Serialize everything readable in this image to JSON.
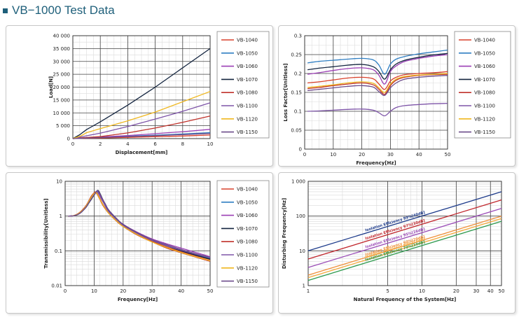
{
  "page": {
    "title": "VB−1000 Test Data"
  },
  "colors": {
    "VB-1040": "#d9402b",
    "VB-1050": "#2f7ec2",
    "VB-1060": "#9b3fb5",
    "VB-1070": "#13243f",
    "VB-1080": "#c0322b",
    "VB-1100": "#7e55a8",
    "VB-1120": "#efb71f",
    "VB-1150": "#6c4b8a"
  },
  "chart_data": [
    {
      "type": "line",
      "xlabel": "Displacement[mm]",
      "ylabel": "Load[N]",
      "xlim": [
        0,
        10
      ],
      "ylim": [
        0,
        40000
      ],
      "xticks": [
        "0",
        "2",
        "4",
        "6",
        "8",
        "10"
      ],
      "yticks": [
        "0",
        "5 000",
        "10 000",
        "15 000",
        "20 000",
        "25 000",
        "30 000",
        "35 000",
        "40 000"
      ],
      "grid": true,
      "legend": "right",
      "series": [
        {
          "name": "VB-1040",
          "x": [
            0,
            0.8,
            2,
            4,
            6,
            8,
            10
          ],
          "y": [
            0,
            100,
            250,
            500,
            750,
            1000,
            1400
          ]
        },
        {
          "name": "VB-1050",
          "x": [
            0,
            0.8,
            2,
            4,
            6,
            8,
            10
          ],
          "y": [
            0,
            200,
            450,
            900,
            1300,
            1800,
            2300
          ]
        },
        {
          "name": "VB-1060",
          "x": [
            0,
            0.8,
            2,
            4,
            6,
            8,
            10
          ],
          "y": [
            0,
            250,
            600,
            1200,
            1900,
            2700,
            3600
          ]
        },
        {
          "name": "VB-1070",
          "x": [
            0,
            0.5,
            1,
            2,
            4,
            6,
            8,
            10
          ],
          "y": [
            0,
            1500,
            3500,
            6500,
            13000,
            20000,
            27500,
            35000
          ]
        },
        {
          "name": "VB-1080",
          "x": [
            0,
            0.8,
            2,
            4,
            6,
            8,
            10
          ],
          "y": [
            0,
            350,
            800,
            2200,
            4100,
            6300,
            8800
          ]
        },
        {
          "name": "VB-1100",
          "x": [
            0,
            0.8,
            2,
            4,
            6,
            8,
            10
          ],
          "y": [
            0,
            900,
            2100,
            4700,
            7600,
            10600,
            13900
          ]
        },
        {
          "name": "VB-1120",
          "x": [
            0,
            0.6,
            1,
            2,
            4,
            6,
            8,
            10
          ],
          "y": [
            0,
            1100,
            2300,
            3900,
            6900,
            10300,
            14300,
            18300
          ]
        },
        {
          "name": "VB-1150",
          "x": [
            0,
            0.8,
            2,
            4,
            6,
            8,
            10
          ],
          "y": [
            0,
            150,
            400,
            800,
            1150,
            1550,
            2000
          ]
        }
      ]
    },
    {
      "type": "line",
      "xlabel": "Frequency[Hz]",
      "ylabel": "Loss Factor[Unitless]",
      "xlim": [
        0,
        50
      ],
      "ylim": [
        0,
        0.3
      ],
      "xticks": [
        "0",
        "10",
        "20",
        "30",
        "40",
        "50"
      ],
      "yticks": [
        "0",
        "0.05",
        "0.1",
        "0.15",
        "0.2",
        "0.25",
        "0.3"
      ],
      "grid": true,
      "legend": "right",
      "series": [
        {
          "name": "VB-1040",
          "x": [
            1,
            5,
            10,
            15,
            20,
            24,
            26,
            28,
            30,
            32,
            35,
            40,
            45,
            50
          ],
          "y": [
            0.175,
            0.178,
            0.183,
            0.188,
            0.19,
            0.186,
            0.172,
            0.158,
            0.18,
            0.19,
            0.197,
            0.2,
            0.202,
            0.205
          ]
        },
        {
          "name": "VB-1050",
          "x": [
            1,
            5,
            10,
            15,
            20,
            24,
            26,
            28,
            30,
            32,
            35,
            40,
            45,
            50
          ],
          "y": [
            0.228,
            0.232,
            0.235,
            0.238,
            0.24,
            0.236,
            0.222,
            0.198,
            0.225,
            0.238,
            0.245,
            0.252,
            0.257,
            0.262
          ]
        },
        {
          "name": "VB-1060",
          "x": [
            1,
            5,
            10,
            15,
            20,
            24,
            26,
            28,
            30,
            32,
            35,
            40,
            45,
            50
          ],
          "y": [
            0.198,
            0.202,
            0.208,
            0.213,
            0.215,
            0.21,
            0.195,
            0.172,
            0.205,
            0.22,
            0.232,
            0.24,
            0.246,
            0.25
          ]
        },
        {
          "name": "VB-1070",
          "x": [
            1,
            5,
            10,
            15,
            20,
            24,
            26,
            28,
            30,
            32,
            35,
            40,
            45,
            50
          ],
          "y": [
            0.21,
            0.214,
            0.218,
            0.222,
            0.224,
            0.218,
            0.205,
            0.185,
            0.21,
            0.225,
            0.235,
            0.243,
            0.249,
            0.253
          ]
        },
        {
          "name": "VB-1080",
          "x": [
            1,
            5,
            10,
            15,
            20,
            24,
            26,
            28,
            30,
            32,
            35,
            40,
            45,
            50
          ],
          "y": [
            0.16,
            0.163,
            0.168,
            0.172,
            0.175,
            0.17,
            0.158,
            0.145,
            0.168,
            0.182,
            0.19,
            0.195,
            0.197,
            0.198
          ]
        },
        {
          "name": "VB-1100",
          "x": [
            1,
            5,
            10,
            15,
            20,
            24,
            26,
            28,
            30,
            32,
            35,
            40,
            45,
            50
          ],
          "y": [
            0.1,
            0.101,
            0.103,
            0.105,
            0.106,
            0.103,
            0.096,
            0.088,
            0.1,
            0.11,
            0.115,
            0.118,
            0.12,
            0.121
          ]
        },
        {
          "name": "VB-1120",
          "x": [
            1,
            5,
            10,
            15,
            20,
            24,
            26,
            28,
            30,
            32,
            35,
            40,
            45,
            50
          ],
          "y": [
            0.163,
            0.166,
            0.17,
            0.175,
            0.178,
            0.174,
            0.162,
            0.15,
            0.172,
            0.185,
            0.192,
            0.196,
            0.198,
            0.2
          ]
        },
        {
          "name": "VB-1150",
          "x": [
            1,
            5,
            10,
            15,
            20,
            24,
            26,
            28,
            30,
            32,
            35,
            40,
            45,
            50
          ],
          "y": [
            0.155,
            0.158,
            0.162,
            0.166,
            0.168,
            0.164,
            0.152,
            0.142,
            0.162,
            0.175,
            0.185,
            0.19,
            0.193,
            0.195
          ]
        }
      ]
    },
    {
      "type": "line",
      "xlabel": "Frequency[Hz]",
      "ylabel": "Transmissibility[Unitless]",
      "xlim": [
        0,
        50
      ],
      "ylim": [
        0.01,
        10
      ],
      "yscale": "log",
      "xticks": [
        "0",
        "10",
        "20",
        "30",
        "40",
        "50"
      ],
      "yticks": [
        "0.01",
        "0.1",
        "1",
        "10"
      ],
      "grid": true,
      "legend": "right",
      "series": [
        {
          "name": "VB-1040",
          "fn": 10.6,
          "x": [
            1,
            3,
            5,
            7,
            8,
            9,
            10,
            10.6,
            11,
            12,
            13,
            15,
            18,
            20,
            25,
            30,
            35,
            40,
            45,
            50
          ],
          "y": [
            1.0,
            1.03,
            1.25,
            1.85,
            2.5,
            3.5,
            4.6,
            5.0,
            4.6,
            3.2,
            2.2,
            1.25,
            0.72,
            0.52,
            0.3,
            0.19,
            0.13,
            0.095,
            0.072,
            0.056
          ]
        },
        {
          "name": "VB-1050",
          "fn": 10.9,
          "x": [
            1,
            3,
            5,
            7,
            8,
            9,
            10,
            10.9,
            11.5,
            12.5,
            13.5,
            15,
            18,
            20,
            25,
            30,
            35,
            40,
            45,
            50
          ],
          "y": [
            1.0,
            1.03,
            1.22,
            1.78,
            2.4,
            3.3,
            4.4,
            5.2,
            4.6,
            3.2,
            2.3,
            1.4,
            0.78,
            0.56,
            0.32,
            0.2,
            0.14,
            0.1,
            0.076,
            0.06
          ]
        },
        {
          "name": "VB-1060",
          "fn": 11.0,
          "x": [
            1,
            3,
            5,
            7,
            8,
            9,
            10,
            11,
            11.5,
            12.5,
            13.5,
            15,
            18,
            20,
            25,
            30,
            35,
            40,
            45,
            50
          ],
          "y": [
            1.0,
            1.03,
            1.2,
            1.75,
            2.35,
            3.2,
            4.3,
            5.3,
            4.9,
            3.4,
            2.4,
            1.45,
            0.8,
            0.58,
            0.34,
            0.22,
            0.16,
            0.12,
            0.09,
            0.068
          ]
        },
        {
          "name": "VB-1070",
          "fn": 11.2,
          "x": [
            1,
            3,
            5,
            7,
            8,
            9,
            10,
            11.2,
            12,
            13,
            14,
            15,
            18,
            20,
            25,
            30,
            35,
            40,
            45,
            50
          ],
          "y": [
            1.0,
            1.02,
            1.18,
            1.7,
            2.25,
            3.0,
            4.0,
            5.5,
            4.5,
            3.0,
            2.1,
            1.5,
            0.8,
            0.57,
            0.32,
            0.2,
            0.14,
            0.1,
            0.075,
            0.058
          ]
        },
        {
          "name": "VB-1080",
          "fn": 10.4,
          "x": [
            1,
            3,
            5,
            7,
            8,
            9,
            10,
            10.4,
            11,
            12,
            13,
            15,
            18,
            20,
            25,
            30,
            35,
            40,
            45,
            50
          ],
          "y": [
            1.0,
            1.03,
            1.27,
            1.9,
            2.6,
            3.7,
            4.7,
            4.9,
            4.3,
            3.0,
            2.05,
            1.2,
            0.68,
            0.5,
            0.28,
            0.18,
            0.12,
            0.088,
            0.066,
            0.05
          ]
        },
        {
          "name": "VB-1100",
          "fn": 10.8,
          "x": [
            1,
            3,
            5,
            7,
            8,
            9,
            10,
            10.8,
            11.5,
            12.5,
            13.5,
            15,
            18,
            20,
            25,
            30,
            35,
            40,
            45,
            50
          ],
          "y": [
            1.0,
            1.03,
            1.22,
            1.8,
            2.45,
            3.4,
            4.4,
            5.0,
            4.4,
            3.1,
            2.2,
            1.32,
            0.74,
            0.54,
            0.31,
            0.2,
            0.14,
            0.105,
            0.08,
            0.064
          ]
        },
        {
          "name": "VB-1120",
          "fn": 10.7,
          "x": [
            1,
            3,
            5,
            7,
            8,
            9,
            10,
            10.7,
            11,
            12,
            13,
            15,
            18,
            20,
            25,
            30,
            35,
            40,
            45,
            50
          ],
          "y": [
            1.0,
            1.03,
            1.24,
            1.82,
            2.5,
            3.45,
            4.5,
            4.8,
            4.5,
            3.1,
            2.15,
            1.22,
            0.7,
            0.5,
            0.29,
            0.18,
            0.125,
            0.09,
            0.068,
            0.052
          ]
        },
        {
          "name": "VB-1150",
          "fn": 11.1,
          "x": [
            1,
            3,
            5,
            7,
            8,
            9,
            10,
            11.1,
            11.8,
            12.8,
            13.8,
            15,
            18,
            20,
            25,
            30,
            35,
            40,
            45,
            50
          ],
          "y": [
            1.0,
            1.02,
            1.19,
            1.72,
            2.3,
            3.1,
            4.1,
            5.4,
            4.6,
            3.2,
            2.25,
            1.5,
            0.8,
            0.58,
            0.33,
            0.21,
            0.15,
            0.11,
            0.083,
            0.065
          ]
        }
      ]
    },
    {
      "type": "line",
      "xlabel": "Natural Frequency of the System[Hz]",
      "ylabel": "Disturbing Frequency[Hz]",
      "xscale": "log",
      "yscale": "log",
      "xlim": [
        1,
        50
      ],
      "ylim": [
        1,
        1000
      ],
      "xticks": [
        "1",
        "5",
        "10",
        "20",
        "30",
        "40",
        "50"
      ],
      "yticks": [
        "1",
        "10",
        "100",
        "1 000"
      ],
      "grid": true,
      "series": [
        {
          "name": "Isolation Efficiency 99%[40dB]",
          "color": "#1c3a8a",
          "x": [
            1,
            50
          ],
          "y": [
            10.05,
            502
          ]
        },
        {
          "name": "Isolation Efficiency 97%[30dB]",
          "color": "#c0252b",
          "x": [
            1,
            50
          ],
          "y": [
            5.83,
            292
          ]
        },
        {
          "name": "Isolation Efficiency 95%[26dB]",
          "color": "#9a4bb6",
          "x": [
            1,
            50
          ],
          "y": [
            3.32,
            166
          ]
        },
        {
          "name": "Isolation Efficiency 90%[20dB]",
          "color": "#f0903a",
          "x": [
            1,
            50
          ],
          "y": [
            2.0,
            100
          ]
        },
        {
          "name": "Isolation Efficiency 80%[14dB]",
          "color": "#f2a93b",
          "x": [
            1,
            50
          ],
          "y": [
            1.7,
            85
          ]
        },
        {
          "name": "Isolation Efficiency 70%[10dB]",
          "color": "#2e9a4e",
          "x": [
            1,
            50
          ],
          "y": [
            1.41,
            70.7
          ]
        }
      ],
      "annotations": [
        "Isolation Efficiency 99%[40dB]",
        "Isolation Efficiency 97%[30dB]",
        "Isolation Efficiency 95%[26dB]",
        "Isolation Efficiency 90%[20dB]",
        "Isolation Efficiency 80%[14dB]",
        "Isolation Efficiency 70%[10dB]"
      ]
    }
  ]
}
